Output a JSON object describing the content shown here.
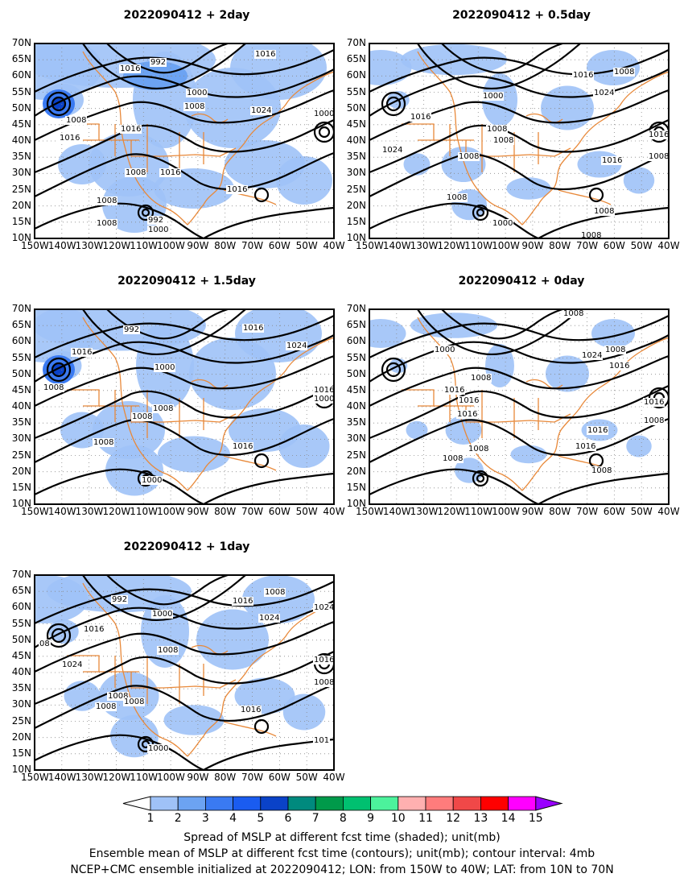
{
  "panels": [
    {
      "title": "2022090412  +  2day",
      "labels": [
        {
          "t": "1016",
          "x": 105,
          "y": 26
        },
        {
          "t": "992",
          "x": 143,
          "y": 18
        },
        {
          "t": "1016",
          "x": 273,
          "y": 8
        },
        {
          "t": "1000",
          "x": 188,
          "y": 56
        },
        {
          "t": "1008",
          "x": 185,
          "y": 73
        },
        {
          "t": "1024",
          "x": 268,
          "y": 78
        },
        {
          "t": "1008",
          "x": 38,
          "y": 90
        },
        {
          "t": "1016",
          "x": 106,
          "y": 101
        },
        {
          "t": "1016",
          "x": 30,
          "y": 112
        },
        {
          "t": "1008",
          "x": 112,
          "y": 155
        },
        {
          "t": "1016",
          "x": 155,
          "y": 155
        },
        {
          "t": "1016",
          "x": 238,
          "y": 176
        },
        {
          "t": "1008",
          "x": 76,
          "y": 190
        },
        {
          "t": "992",
          "x": 140,
          "y": 214
        },
        {
          "t": "1000",
          "x": 140,
          "y": 226
        },
        {
          "t": "1008",
          "x": 76,
          "y": 218
        },
        {
          "t": "1000",
          "x": 370,
          "y": 82
        }
      ]
    },
    {
      "title": "2022090412  +  0.5day",
      "labels": [
        {
          "t": "1016",
          "x": 252,
          "y": 34
        },
        {
          "t": "1008",
          "x": 303,
          "y": 30
        },
        {
          "t": "1024",
          "x": 278,
          "y": 56
        },
        {
          "t": "1000",
          "x": 140,
          "y": 60
        },
        {
          "t": "1016",
          "x": 50,
          "y": 86
        },
        {
          "t": "1008",
          "x": 145,
          "y": 101
        },
        {
          "t": "1008",
          "x": 153,
          "y": 115
        },
        {
          "t": "1024",
          "x": 15,
          "y": 127
        },
        {
          "t": "1008",
          "x": 110,
          "y": 135
        },
        {
          "t": "1016",
          "x": 288,
          "y": 140
        },
        {
          "t": "1016",
          "x": 352,
          "y": 108
        },
        {
          "t": "1008",
          "x": 352,
          "y": 135
        },
        {
          "t": "1008",
          "x": 95,
          "y": 186
        },
        {
          "t": "1000",
          "x": 152,
          "y": 218
        },
        {
          "t": "1008",
          "x": 278,
          "y": 203
        },
        {
          "t": "1008",
          "x": 262,
          "y": 233
        }
      ]
    },
    {
      "title": "2022090412  +  1.5day",
      "labels": [
        {
          "t": "992",
          "x": 110,
          "y": 20
        },
        {
          "t": "1016",
          "x": 258,
          "y": 18
        },
        {
          "t": "1016",
          "x": 45,
          "y": 48
        },
        {
          "t": "1024",
          "x": 312,
          "y": 40
        },
        {
          "t": "1000",
          "x": 148,
          "y": 67
        },
        {
          "t": "1008",
          "x": 10,
          "y": 92
        },
        {
          "t": "1008",
          "x": 146,
          "y": 118
        },
        {
          "t": "1008",
          "x": 120,
          "y": 128
        },
        {
          "t": "1016",
          "x": 372,
          "y": 95
        },
        {
          "t": "1000",
          "x": 372,
          "y": 106
        },
        {
          "t": "1008",
          "x": 72,
          "y": 160
        },
        {
          "t": "1016",
          "x": 245,
          "y": 165
        },
        {
          "t": "1000",
          "x": 132,
          "y": 207
        }
      ]
    },
    {
      "title": "2022090412  +  0day",
      "labels": [
        {
          "t": "1008",
          "x": 240,
          "y": 0
        },
        {
          "t": "1000",
          "x": 80,
          "y": 45
        },
        {
          "t": "1024",
          "x": 263,
          "y": 52
        },
        {
          "t": "1008",
          "x": 292,
          "y": 45
        },
        {
          "t": "1016",
          "x": 297,
          "y": 65
        },
        {
          "t": "1008",
          "x": 125,
          "y": 80
        },
        {
          "t": "1016",
          "x": 92,
          "y": 95
        },
        {
          "t": "1016",
          "x": 110,
          "y": 108
        },
        {
          "t": "1016",
          "x": 108,
          "y": 125
        },
        {
          "t": "1016",
          "x": 340,
          "y": 110
        },
        {
          "t": "1008",
          "x": 340,
          "y": 133
        },
        {
          "t": "1016",
          "x": 270,
          "y": 145
        },
        {
          "t": "1008",
          "x": 122,
          "y": 168
        },
        {
          "t": "1016",
          "x": 255,
          "y": 165
        },
        {
          "t": "1008",
          "x": 90,
          "y": 180
        },
        {
          "t": "1008",
          "x": 275,
          "y": 195
        }
      ]
    },
    {
      "title": "2022090412  +  1day",
      "labels": [
        {
          "t": "992",
          "x": 95,
          "y": 25
        },
        {
          "t": "1016",
          "x": 245,
          "y": 27
        },
        {
          "t": "1008",
          "x": 285,
          "y": 16
        },
        {
          "t": "1000",
          "x": 145,
          "y": 43
        },
        {
          "t": "1024",
          "x": 278,
          "y": 48
        },
        {
          "t": "1016",
          "x": 60,
          "y": 62
        },
        {
          "t": "1008",
          "x": 152,
          "y": 88
        },
        {
          "t": "1024",
          "x": 33,
          "y": 106
        },
        {
          "t": "1008",
          "x": 90,
          "y": 145
        },
        {
          "t": "1008",
          "x": 110,
          "y": 152
        },
        {
          "t": "1008",
          "x": 75,
          "y": 158
        },
        {
          "t": "1016",
          "x": 350,
          "y": 100
        },
        {
          "t": "1008",
          "x": 350,
          "y": 128
        },
        {
          "t": "1016",
          "x": 255,
          "y": 162
        },
        {
          "t": "1000",
          "x": 140,
          "y": 210
        },
        {
          "t": "101",
          "x": 357,
          "y": 200
        },
        {
          "t": "1024",
          "x": 350,
          "y": 35
        },
        {
          "t": "08",
          "x": 5,
          "y": 80
        }
      ]
    }
  ],
  "axes": {
    "lat_labels": [
      "70N",
      "65N",
      "60N",
      "55N",
      "50N",
      "45N",
      "40N",
      "35N",
      "30N",
      "25N",
      "20N",
      "15N",
      "10N"
    ],
    "lon_labels": [
      "150W",
      "140W",
      "130W",
      "120W",
      "110W",
      "100W",
      "90W",
      "80W",
      "70W",
      "60W",
      "50W",
      "40W"
    ]
  },
  "legend": {
    "colors": [
      "#9fc2f7",
      "#6ca3f2",
      "#3a7af2",
      "#1a5cf0",
      "#0a42c8",
      "#008a7e",
      "#009a4a",
      "#00c070",
      "#4cf29c",
      "#ffb0b0",
      "#ff7c7c",
      "#f04848",
      "#ff0000",
      "#ff00ff",
      "#9900ff"
    ],
    "ticks": [
      "1",
      "2",
      "3",
      "4",
      "5",
      "6",
      "7",
      "8",
      "9",
      "10",
      "11",
      "12",
      "13",
      "14",
      "15"
    ]
  },
  "captions": [
    "Spread of MSLP at different fcst time (shaded); unit(mb)",
    "Ensemble mean of MSLP at different fcst time (contours); unit(mb); contour interval: 4mb",
    "NCEP+CMC ensemble initialized at 2022090412; LON: from 150W to 40W; LAT: from 10N to 70N"
  ]
}
